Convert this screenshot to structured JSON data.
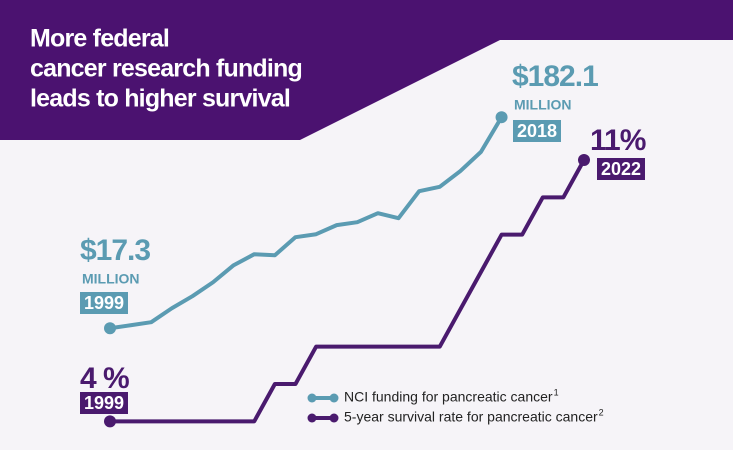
{
  "chart_data": {
    "type": "line",
    "title": [
      "More federal",
      "cancer research funding",
      "leads to higher survival"
    ],
    "xlim": [
      1999,
      2022
    ],
    "ylim": [
      -70,
      258
    ],
    "y2lim": [
      3.5,
      14.75
    ],
    "series": [
      {
        "name": "NCI funding for pancreatic cancer",
        "note": "1",
        "color": "#5b9bb2",
        "unit": "MILLION",
        "x": [
          1999,
          2000,
          2001,
          2002,
          2003,
          2004,
          2005,
          2006,
          2007,
          2008,
          2009,
          2010,
          2011,
          2012,
          2013,
          2014,
          2015,
          2016,
          2017,
          2018
        ],
        "values": [
          17.3,
          19.6,
          22.0,
          32.9,
          42.3,
          53.2,
          66.5,
          75.1,
          74.3,
          88.4,
          90.7,
          97.8,
          100.1,
          107.1,
          103.2,
          124.3,
          127.7,
          140,
          155,
          182.1
        ],
        "value_labels": [
          "$17.3",
          null,
          null,
          null,
          null,
          null,
          null,
          null,
          null,
          null,
          null,
          null,
          null,
          null,
          null,
          null,
          null,
          null,
          null,
          "$182.1"
        ]
      },
      {
        "name": "5-year survival rate for pancreatic cancer",
        "note": "2",
        "color": "#4a1a6e",
        "axis": "y2",
        "x": [
          1999,
          2000,
          2001,
          2002,
          2003,
          2004,
          2005,
          2006,
          2007,
          2008,
          2009,
          2010,
          2011,
          2012,
          2013,
          2014,
          2015,
          2016,
          2017,
          2018,
          2019,
          2020,
          2021,
          2022
        ],
        "values": [
          4,
          4,
          4,
          4,
          4,
          4,
          4,
          4,
          5,
          5,
          6,
          6,
          6,
          6,
          6,
          6,
          6,
          7,
          8,
          9,
          9,
          10,
          10,
          11
        ],
        "value_labels": [
          "4 %",
          null,
          null,
          null,
          null,
          null,
          null,
          null,
          null,
          null,
          null,
          null,
          null,
          null,
          null,
          null,
          null,
          null,
          null,
          null,
          null,
          null,
          null,
          "11%"
        ]
      }
    ]
  }
}
